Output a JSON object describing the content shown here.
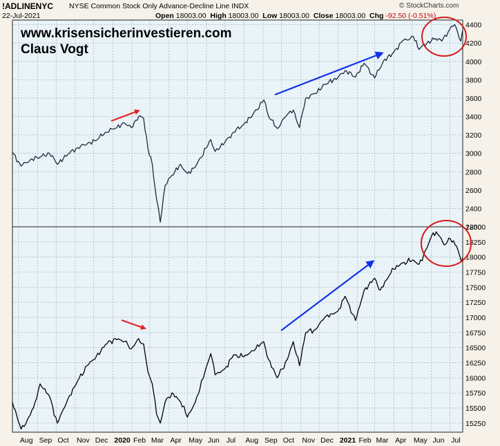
{
  "header": {
    "ticker": "!ADLINENYC",
    "title": "NYSE Common Stock Only Advance-Decline Line  INDX",
    "date": "22-Jul-2021",
    "open_label": "Open",
    "open": "18003.00",
    "high_label": "High",
    "high": "18003.00",
    "low_label": "Low",
    "low": "18003.00",
    "close_label": "Close",
    "close": "18003.00",
    "chg_label": "Chg",
    "chg": "-92.50 (-0.51%)",
    "credit": "© StockCharts.com"
  },
  "watermark": {
    "site": "www.krisensicherinvestieren.com",
    "author": "Claus Vogt"
  },
  "colors": {
    "background": "#f6f2ea",
    "plot_bg": "#e9f3f8",
    "grid": "#a8b8c4",
    "line_upper": "#1a2a3a",
    "line_lower": "#000000",
    "annot_red": "#e52020",
    "annot_blue": "#1030e8",
    "circle": "#d81818",
    "chg_red": "#c00000"
  },
  "chart_data": [
    {
      "type": "line",
      "title": "",
      "xlabel": "",
      "ylabel": "",
      "y_axis_side": "right",
      "ylim": [
        2200,
        4450
      ],
      "yticks": [
        2200,
        2400,
        2600,
        2800,
        3000,
        3200,
        3400,
        3600,
        3800,
        4000,
        4200,
        4400
      ],
      "grid": true,
      "series": [
        {
          "points": [
            [
              "2019-07-22",
              3010
            ],
            [
              "2019-08-05",
              2860
            ],
            [
              "2019-08-20",
              2930
            ],
            [
              "2019-09-05",
              2960
            ],
            [
              "2019-09-20",
              3000
            ],
            [
              "2019-10-03",
              2880
            ],
            [
              "2019-10-20",
              2990
            ],
            [
              "2019-11-05",
              3060
            ],
            [
              "2019-11-20",
              3100
            ],
            [
              "2019-12-05",
              3140
            ],
            [
              "2019-12-20",
              3230
            ],
            [
              "2020-01-05",
              3270
            ],
            [
              "2020-01-20",
              3330
            ],
            [
              "2020-01-31",
              3280
            ],
            [
              "2020-02-12",
              3400
            ],
            [
              "2020-02-20",
              3380
            ],
            [
              "2020-02-27",
              3050
            ],
            [
              "2020-03-05",
              2880
            ],
            [
              "2020-03-12",
              2500
            ],
            [
              "2020-03-18",
              2250
            ],
            [
              "2020-03-26",
              2650
            ],
            [
              "2020-04-06",
              2760
            ],
            [
              "2020-04-20",
              2880
            ],
            [
              "2020-05-01",
              2780
            ],
            [
              "2020-05-14",
              2850
            ],
            [
              "2020-06-08",
              3150
            ],
            [
              "2020-06-15",
              3020
            ],
            [
              "2020-07-01",
              3120
            ],
            [
              "2020-07-15",
              3230
            ],
            [
              "2020-08-01",
              3320
            ],
            [
              "2020-08-15",
              3420
            ],
            [
              "2020-09-02",
              3580
            ],
            [
              "2020-09-10",
              3400
            ],
            [
              "2020-09-24",
              3270
            ],
            [
              "2020-10-10",
              3420
            ],
            [
              "2020-10-20",
              3470
            ],
            [
              "2020-10-30",
              3280
            ],
            [
              "2020-11-09",
              3600
            ],
            [
              "2020-11-25",
              3650
            ],
            [
              "2020-12-10",
              3750
            ],
            [
              "2020-12-31",
              3820
            ],
            [
              "2021-01-12",
              3900
            ],
            [
              "2021-01-29",
              3830
            ],
            [
              "2021-02-12",
              3980
            ],
            [
              "2021-03-01",
              3820
            ],
            [
              "2021-03-15",
              4000
            ],
            [
              "2021-04-01",
              4100
            ],
            [
              "2021-04-15",
              4220
            ],
            [
              "2021-05-03",
              4270
            ],
            [
              "2021-05-12",
              4130
            ],
            [
              "2021-05-25",
              4200
            ],
            [
              "2021-06-08",
              4250
            ],
            [
              "2021-06-18",
              4220
            ],
            [
              "2021-07-01",
              4350
            ],
            [
              "2021-07-09",
              4400
            ],
            [
              "2021-07-19",
              4220
            ],
            [
              "2021-07-22",
              4340
            ]
          ]
        }
      ],
      "annotations": [
        {
          "type": "arrow",
          "color": "red"
        },
        {
          "type": "arrow",
          "color": "blue"
        },
        {
          "type": "circle",
          "color": "red"
        }
      ]
    },
    {
      "type": "line",
      "title": "",
      "xlabel": "",
      "ylabel": "",
      "y_axis_side": "right",
      "ylim": [
        15100,
        18500
      ],
      "yticks": [
        15250,
        15500,
        15750,
        16000,
        16250,
        16500,
        16750,
        17000,
        17250,
        17500,
        17750,
        18000,
        18250,
        18500
      ],
      "grid": true,
      "series": [
        {
          "points": [
            [
              "2019-07-22",
              15600
            ],
            [
              "2019-08-05",
              15150
            ],
            [
              "2019-08-15",
              15300
            ],
            [
              "2019-08-25",
              15500
            ],
            [
              "2019-09-05",
              15900
            ],
            [
              "2019-09-20",
              15700
            ],
            [
              "2019-10-03",
              15250
            ],
            [
              "2019-10-20",
              15650
            ],
            [
              "2019-11-05",
              15950
            ],
            [
              "2019-11-20",
              16200
            ],
            [
              "2019-12-05",
              16350
            ],
            [
              "2019-12-20",
              16550
            ],
            [
              "2020-01-05",
              16650
            ],
            [
              "2020-01-20",
              16600
            ],
            [
              "2020-01-31",
              16480
            ],
            [
              "2020-02-12",
              16650
            ],
            [
              "2020-02-20",
              16560
            ],
            [
              "2020-02-27",
              16100
            ],
            [
              "2020-03-05",
              15900
            ],
            [
              "2020-03-12",
              15400
            ],
            [
              "2020-03-18",
              15250
            ],
            [
              "2020-03-26",
              15600
            ],
            [
              "2020-04-06",
              15750
            ],
            [
              "2020-04-20",
              15600
            ],
            [
              "2020-05-01",
              15350
            ],
            [
              "2020-05-14",
              15600
            ],
            [
              "2020-06-08",
              16400
            ],
            [
              "2020-06-15",
              16050
            ],
            [
              "2020-07-01",
              16150
            ],
            [
              "2020-07-15",
              16380
            ],
            [
              "2020-08-01",
              16350
            ],
            [
              "2020-08-15",
              16450
            ],
            [
              "2020-09-02",
              16600
            ],
            [
              "2020-09-10",
              16300
            ],
            [
              "2020-09-24",
              16000
            ],
            [
              "2020-10-10",
              16300
            ],
            [
              "2020-10-20",
              16600
            ],
            [
              "2020-10-30",
              16200
            ],
            [
              "2020-11-09",
              16750
            ],
            [
              "2020-11-25",
              16800
            ],
            [
              "2020-12-10",
              17000
            ],
            [
              "2020-12-31",
              17100
            ],
            [
              "2021-01-12",
              17350
            ],
            [
              "2021-01-29",
              16950
            ],
            [
              "2021-02-12",
              17450
            ],
            [
              "2021-03-01",
              17650
            ],
            [
              "2021-03-10",
              17450
            ],
            [
              "2021-03-25",
              17700
            ],
            [
              "2021-04-01",
              17800
            ],
            [
              "2021-04-15",
              17900
            ],
            [
              "2021-05-03",
              17950
            ],
            [
              "2021-05-12",
              17880
            ],
            [
              "2021-05-25",
              18150
            ],
            [
              "2021-06-04",
              18400
            ],
            [
              "2021-06-14",
              18350
            ],
            [
              "2021-06-22",
              18200
            ],
            [
              "2021-07-02",
              18300
            ],
            [
              "2021-07-12",
              18180
            ],
            [
              "2021-07-19",
              17950
            ],
            [
              "2021-07-22",
              18003
            ]
          ]
        }
      ],
      "annotations": [
        {
          "type": "arrow",
          "color": "red"
        },
        {
          "type": "arrow",
          "color": "blue"
        },
        {
          "type": "circle",
          "color": "red"
        }
      ]
    }
  ],
  "x_axis": {
    "ticks": [
      {
        "label": "Aug",
        "date": "2019-08-01",
        "bold": false
      },
      {
        "label": "Sep",
        "date": "2019-09-01",
        "bold": false
      },
      {
        "label": "Oct",
        "date": "2019-10-01",
        "bold": false
      },
      {
        "label": "Nov",
        "date": "2019-11-01",
        "bold": false
      },
      {
        "label": "Dec",
        "date": "2019-12-01",
        "bold": false
      },
      {
        "label": "2020",
        "date": "2020-01-01",
        "bold": true
      },
      {
        "label": "Feb",
        "date": "2020-02-01",
        "bold": false
      },
      {
        "label": "Mar",
        "date": "2020-03-01",
        "bold": false
      },
      {
        "label": "Apr",
        "date": "2020-04-01",
        "bold": false
      },
      {
        "label": "May",
        "date": "2020-05-01",
        "bold": false
      },
      {
        "label": "Jun",
        "date": "2020-06-01",
        "bold": false
      },
      {
        "label": "Jul",
        "date": "2020-07-01",
        "bold": false
      },
      {
        "label": "Aug",
        "date": "2020-08-01",
        "bold": false
      },
      {
        "label": "Sep",
        "date": "2020-09-01",
        "bold": false
      },
      {
        "label": "Oct",
        "date": "2020-10-01",
        "bold": false
      },
      {
        "label": "Nov",
        "date": "2020-11-01",
        "bold": false
      },
      {
        "label": "Dec",
        "date": "2020-12-01",
        "bold": false
      },
      {
        "label": "2021",
        "date": "2021-01-01",
        "bold": true
      },
      {
        "label": "Feb",
        "date": "2021-02-01",
        "bold": false
      },
      {
        "label": "Mar",
        "date": "2021-03-01",
        "bold": false
      },
      {
        "label": "Apr",
        "date": "2021-04-01",
        "bold": false
      },
      {
        "label": "May",
        "date": "2021-05-01",
        "bold": false
      },
      {
        "label": "Jun",
        "date": "2021-06-01",
        "bold": false
      },
      {
        "label": "Jul",
        "date": "2021-07-01",
        "bold": false
      }
    ]
  }
}
